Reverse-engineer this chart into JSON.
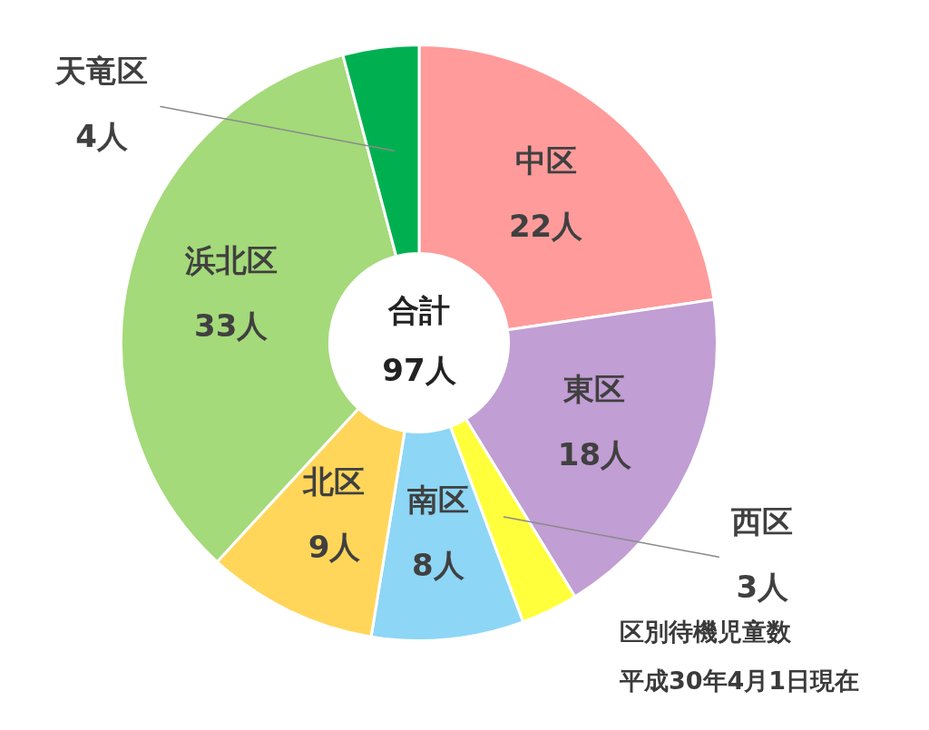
{
  "chart_data": {
    "type": "donut",
    "categories": [
      "中区",
      "東区",
      "西区",
      "南区",
      "北区",
      "浜北区",
      "天竜区"
    ],
    "values": [
      22,
      18,
      3,
      8,
      9,
      33,
      4
    ],
    "colors": [
      "#ff9b9b",
      "#c19ed3",
      "#ffff3c",
      "#8dd6f6",
      "#ffd65a",
      "#a4da7a",
      "#00b050"
    ],
    "value_labels": [
      "22人",
      "18人",
      "3人",
      "8人",
      "9人",
      "33人",
      "4人"
    ],
    "annotations": [
      "合計",
      "97人"
    ],
    "title": "区別待機児童数",
    "subtitle": "平成30年4月1日現在"
  }
}
